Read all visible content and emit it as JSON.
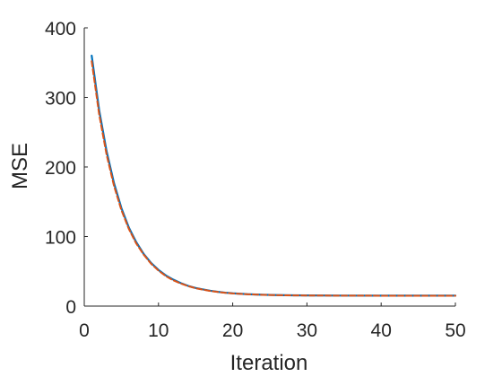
{
  "chart_data": {
    "type": "line",
    "title": "",
    "xlabel": "Iteration",
    "ylabel": "MSE",
    "xlim": [
      0,
      50
    ],
    "ylim": [
      0,
      400
    ],
    "grid": false,
    "legend": "none",
    "xticks": [
      "0",
      "10",
      "20",
      "30",
      "40",
      "50"
    ],
    "yticks": [
      "0",
      "100",
      "200",
      "300",
      "400"
    ],
    "series": [
      {
        "color": "#0072BD",
        "line_style": "solid",
        "x": [
          1,
          2,
          3,
          4,
          5,
          6,
          7,
          8,
          9,
          10,
          11,
          12,
          13,
          14,
          15,
          16,
          17,
          18,
          19,
          20,
          22,
          24,
          26,
          28,
          30,
          35,
          40,
          45,
          50
        ],
        "y": [
          360,
          282,
          223,
          177,
          141,
          113,
          92,
          75,
          62,
          52,
          44,
          38,
          33,
          29,
          26,
          24,
          22,
          20.5,
          19.3,
          18.4,
          17.1,
          16.3,
          15.8,
          15.5,
          15.3,
          15.1,
          15.0,
          15.0,
          15.0
        ]
      },
      {
        "color": "#D95319",
        "line_style": "dashed",
        "x": [
          1,
          2,
          3,
          4,
          5,
          6,
          7,
          8,
          9,
          10,
          11,
          12,
          13,
          14,
          15,
          16,
          17,
          18,
          19,
          20,
          22,
          24,
          26,
          28,
          30,
          35,
          40,
          45,
          50
        ],
        "y": [
          352,
          276,
          218,
          173,
          138,
          111,
          90,
          74,
          61,
          51,
          43,
          37,
          32.5,
          28.7,
          25.7,
          23.6,
          21.7,
          20.3,
          19.1,
          18.2,
          17.0,
          16.2,
          15.7,
          15.4,
          15.2,
          15.0,
          14.9,
          14.9,
          14.9
        ]
      }
    ]
  }
}
